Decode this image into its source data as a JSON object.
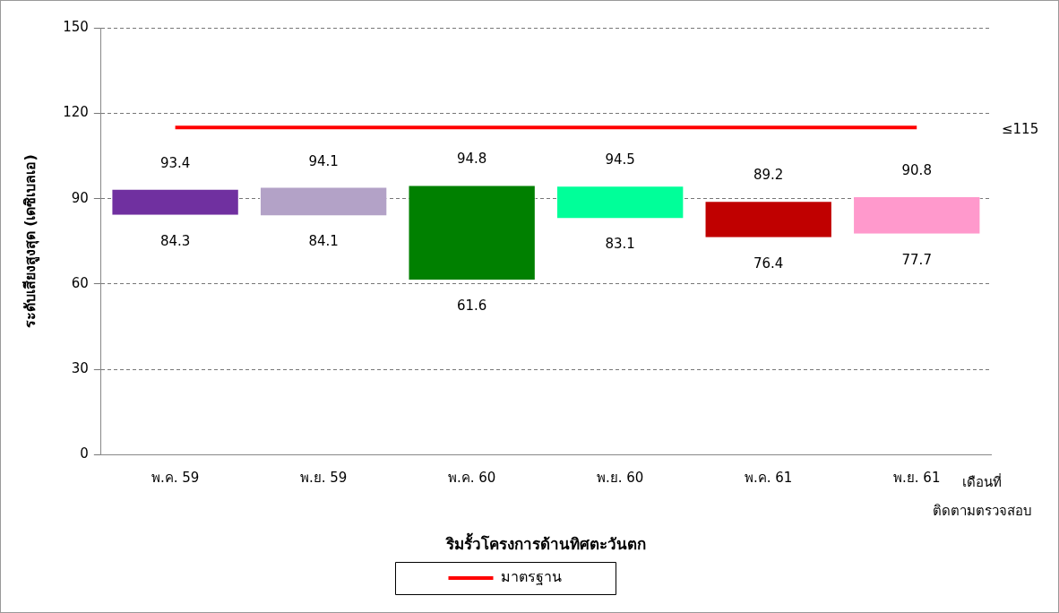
{
  "chart_data": {
    "type": "bar",
    "xlabel": "ริมรั้วโครงการด้านทิศตะวันตก",
    "ylabel": "ระดับเสียงสูงสุด (เดซิเบลเอ)",
    "categories": [
      "พ.ค. 59",
      "พ.ย. 59",
      "พ.ค. 60",
      "พ.ย. 60",
      "พ.ค. 61",
      "พ.ย. 61"
    ],
    "series": [
      {
        "values": [
          9.1,
          10.0,
          33.2,
          11.4,
          12.8,
          13.1
        ],
        "base": [
          84.3,
          84.1,
          61.6,
          83.1,
          76.4,
          77.7
        ],
        "colors": [
          "#7030a0",
          "#b3a2c7",
          "#008000",
          "#00ff99",
          "#c00000",
          "#ff99cc"
        ]
      },
      {
        "type": "line",
        "name": "มาตรฐาน",
        "color": "#ff0000",
        "values": [
          115,
          115,
          115,
          115,
          115,
          115
        ]
      }
    ],
    "ylim": [
      0,
      150
    ],
    "yticks": [
      0,
      30,
      60,
      90,
      120,
      150
    ],
    "grid": "y",
    "legend": "bottom",
    "marker": "none",
    "annotations": [
      {
        "text": "93.4",
        "x": "พ.ค. 59",
        "y": 93.4
      },
      {
        "text": "84.3",
        "x": "พ.ค. 59",
        "y": 84.3
      },
      {
        "text": "94.1",
        "x": "พ.ย. 59",
        "y": 94.1
      },
      {
        "text": "84.1",
        "x": "พ.ย. 59",
        "y": 84.1
      },
      {
        "text": "94.8",
        "x": "พ.ค. 60",
        "y": 94.8
      },
      {
        "text": "61.6",
        "x": "พ.ค. 60",
        "y": 61.6
      },
      {
        "text": "94.5",
        "x": "พ.ย. 60",
        "y": 94.5
      },
      {
        "text": "83.1",
        "x": "พ.ย. 60",
        "y": 83.1
      },
      {
        "text": "89.2",
        "x": "พ.ค. 61",
        "y": 89.2
      },
      {
        "text": "76.4",
        "x": "พ.ค. 61",
        "y": 76.4
      },
      {
        "text": "90.8",
        "x": "พ.ย. 61",
        "y": 90.8
      },
      {
        "text": "77.7",
        "x": "พ.ย. 61",
        "y": 77.7
      },
      "≤115",
      "เดือนที่ ติดตามตรวจสอบ"
    ]
  }
}
